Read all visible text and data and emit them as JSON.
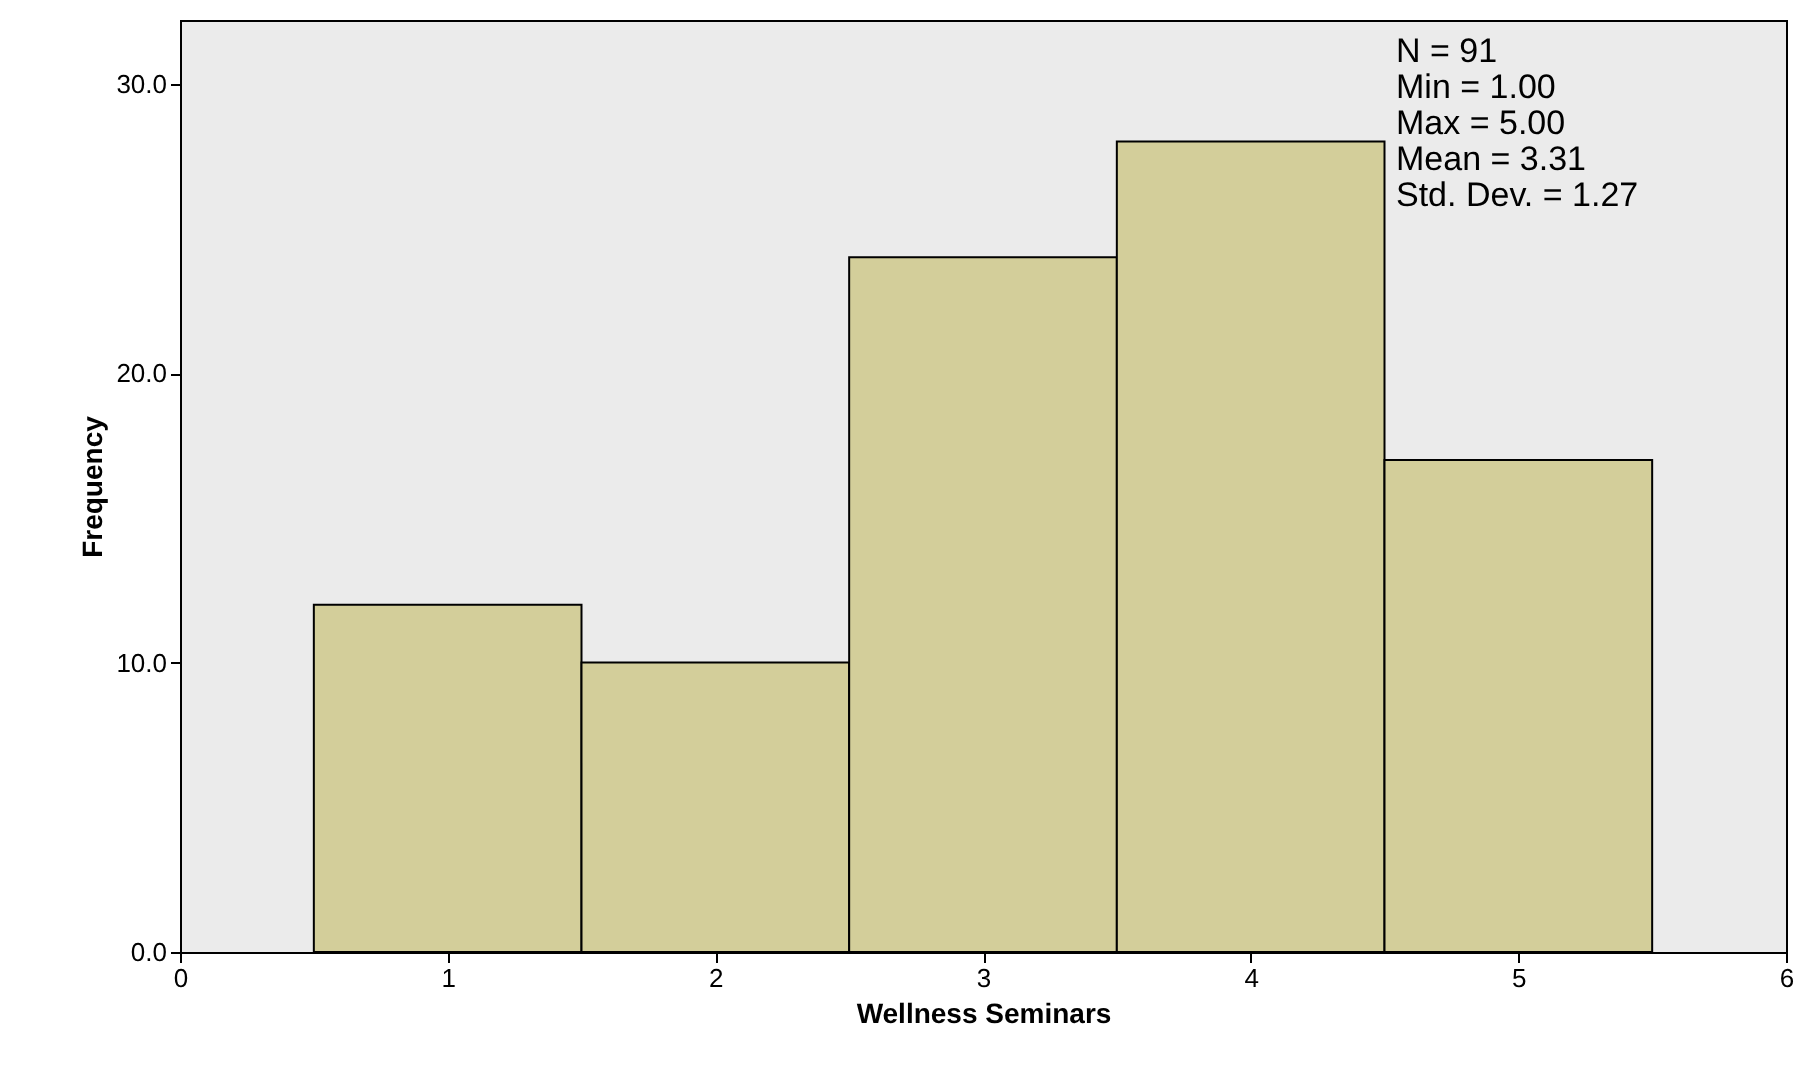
{
  "chart_data": {
    "type": "histogram",
    "xlabel": "Wellness Seminars",
    "ylabel": "Frequency",
    "bins": [
      0.5,
      1.5,
      2.5,
      3.5,
      4.5,
      5.5
    ],
    "values": [
      12,
      10,
      24,
      28,
      17
    ],
    "color": "#d3ce9a",
    "xlim": [
      0,
      6
    ],
    "xticks": [
      0,
      1,
      2,
      3,
      4,
      5,
      6
    ],
    "ylim": [
      0,
      32.2
    ],
    "yticks": [
      {
        "value": 0,
        "label": "0.0"
      },
      {
        "value": 10,
        "label": "10.0"
      },
      {
        "value": 20,
        "label": "20.0"
      },
      {
        "value": 30,
        "label": "30.0"
      }
    ],
    "annotations": [
      "N = 91",
      "Min = 1.00",
      "Max = 5.00",
      "Mean = 3.31",
      "Std. Dev. = 1.27"
    ],
    "grid": false
  }
}
